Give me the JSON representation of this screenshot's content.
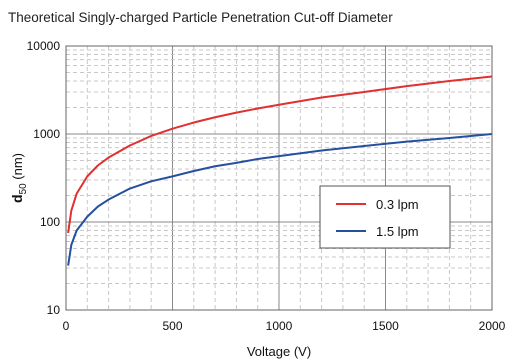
{
  "chart_data": {
    "type": "line",
    "title": "Theoretical Singly-charged Particle Penetration Cut-off Diameter",
    "xlabel": "Voltage (V)",
    "ylabel": {
      "main": "d",
      "sub": "50",
      "unit": " (nm)"
    },
    "xlim": [
      0,
      2000
    ],
    "ylim": [
      10,
      10000
    ],
    "y_scale": "log",
    "x_ticks": [
      "0",
      "500",
      "1000",
      "1500",
      "2000"
    ],
    "y_ticks": [
      "10",
      "100",
      "1000",
      "10000"
    ],
    "grid": true,
    "legend_position": "center-right",
    "series": [
      {
        "name": "0.3 lpm",
        "color": "#e03030",
        "x": [
          10,
          25,
          50,
          100,
          150,
          200,
          300,
          400,
          500,
          600,
          700,
          800,
          900,
          1000,
          1200,
          1400,
          1600,
          1800,
          2000
        ],
        "y": [
          75,
          135,
          210,
          330,
          440,
          540,
          740,
          950,
          1150,
          1350,
          1550,
          1750,
          1950,
          2150,
          2600,
          3000,
          3500,
          4000,
          4500
        ]
      },
      {
        "name": "1.5 lpm",
        "color": "#2550a0",
        "x": [
          10,
          25,
          50,
          100,
          150,
          200,
          300,
          400,
          500,
          600,
          700,
          800,
          900,
          1000,
          1200,
          1400,
          1600,
          1800,
          2000
        ],
        "y": [
          32,
          55,
          80,
          115,
          150,
          180,
          240,
          290,
          330,
          380,
          430,
          470,
          520,
          560,
          650,
          730,
          820,
          900,
          1000
        ]
      }
    ]
  }
}
